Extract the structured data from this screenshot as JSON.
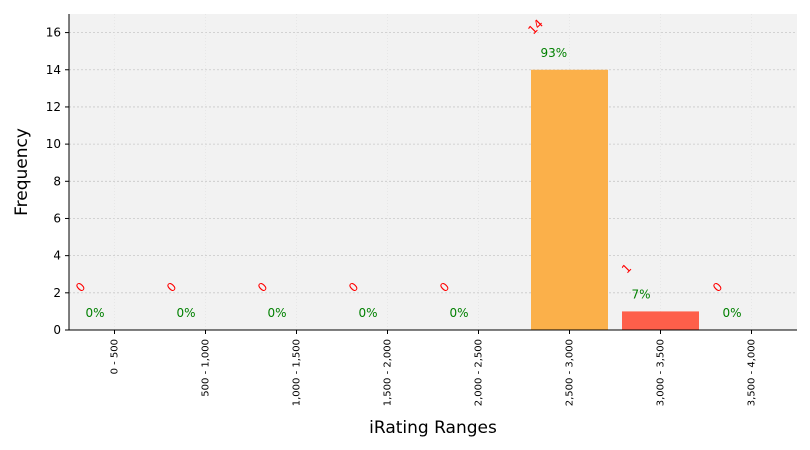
{
  "chart_data": {
    "type": "bar",
    "xlabel": "iRating Ranges",
    "ylabel": "Frequency",
    "ylim": [
      0,
      17
    ],
    "yticks": [
      0,
      2,
      4,
      6,
      8,
      10,
      12,
      14,
      16
    ],
    "grid": true,
    "categories": [
      "0 - 500",
      "500 - 1,000",
      "1,000 - 1,500",
      "1,500 - 2,000",
      "2,000 - 2,500",
      "2,500 - 3,000",
      "3,000 - 3,500",
      "3,500 - 4,000"
    ],
    "values": [
      0,
      0,
      0,
      0,
      0,
      14,
      1,
      0
    ],
    "count_labels": [
      "0",
      "0",
      "0",
      "0",
      "0",
      "14",
      "1",
      "0"
    ],
    "percent_labels": [
      "0%",
      "0%",
      "0%",
      "0%",
      "0%",
      "93%",
      "7%",
      "0%"
    ],
    "bar_colors": [
      "#fbb04a",
      "#fbb04a",
      "#fbb04a",
      "#fbb04a",
      "#fbb04a",
      "#fbb04a",
      "#fe5f4a",
      "#fbb04a"
    ],
    "plot_background": "#f2f2f2",
    "count_label_color": "#ff0000",
    "percent_label_color": "#008000"
  }
}
